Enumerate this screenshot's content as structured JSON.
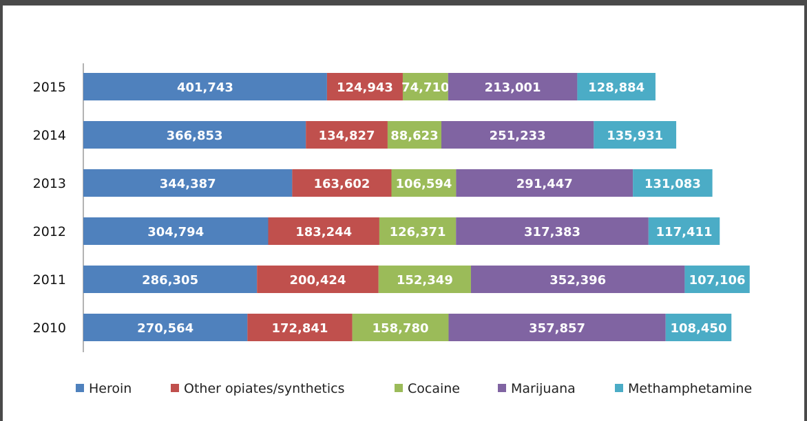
{
  "chart_data": {
    "type": "bar",
    "orientation": "horizontal",
    "stacked": true,
    "categories": [
      "2015",
      "2014",
      "2013",
      "2012",
      "2011",
      "2010"
    ],
    "series": [
      {
        "name": "Heroin",
        "color": "#4f81bd",
        "values": [
          401743,
          366853,
          344387,
          304794,
          286305,
          270564
        ],
        "labels": [
          "401,743",
          "366,853",
          "344,387",
          "304,794",
          "286,305",
          "270,564"
        ]
      },
      {
        "name": "Other opiates/synthetics",
        "color": "#c0504d",
        "values": [
          124943,
          134827,
          163602,
          183244,
          200424,
          172841
        ],
        "labels": [
          "124,943",
          "134,827",
          "163,602",
          "183,244",
          "200,424",
          "172,841"
        ]
      },
      {
        "name": "Cocaine",
        "color": "#9bbb59",
        "values": [
          74710,
          88623,
          106594,
          126371,
          152349,
          158780
        ],
        "labels": [
          "74,710",
          "88,623",
          "106,594",
          "126,371",
          "152,349",
          "158,780"
        ]
      },
      {
        "name": "Marijuana",
        "color": "#8064a2",
        "values": [
          213001,
          251233,
          291447,
          317383,
          352396,
          357857
        ],
        "labels": [
          "213,001",
          "251,233",
          "291,447",
          "317,383",
          "352,396",
          "357,857"
        ]
      },
      {
        "name": "Methamphetamine",
        "color": "#4bacc6",
        "values": [
          128884,
          135931,
          131083,
          117411,
          107106,
          108450
        ],
        "labels": [
          "128,884",
          "135,931",
          "131,083",
          "117,411",
          "107,106",
          "108,450"
        ]
      }
    ],
    "xlim": [
      0,
      1100000
    ],
    "grid": false,
    "legend": "bottom"
  }
}
